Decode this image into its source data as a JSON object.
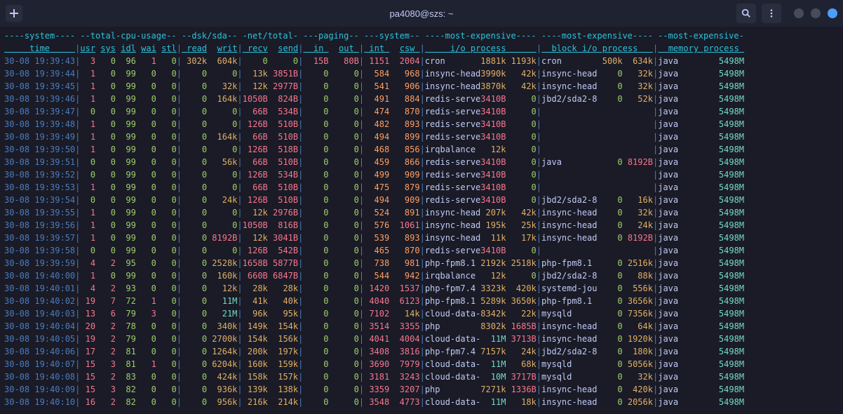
{
  "titlebar": {
    "title": "pa4080@szs: ~"
  },
  "header": {
    "groups": [
      {
        "label": "----system----",
        "cls": "cyan"
      },
      {
        "label": " --total-cpu-usage--",
        "cls": "cyan"
      },
      {
        "label": " --dsk/sda--",
        "cls": "cyan"
      },
      {
        "label": " -net/total-",
        "cls": "cyan"
      },
      {
        "label": " ---paging--",
        "cls": "cyan"
      },
      {
        "label": " ---system--",
        "cls": "cyan"
      },
      {
        "label": " ----most-expensive----",
        "cls": "cyan"
      },
      {
        "label": " ----most-expensive----",
        "cls": "cyan"
      },
      {
        "label": " --most-expensive-",
        "cls": "cyan"
      }
    ],
    "cols": [
      {
        "label": "     time     ",
        "cls": "cyan-u"
      },
      {
        "label": "|",
        "cls": "blue"
      },
      {
        "label": "usr",
        "cls": "cyan-u"
      },
      {
        "label": " ",
        "cls": "cyan"
      },
      {
        "label": "sys",
        "cls": "cyan-u"
      },
      {
        "label": " ",
        "cls": "cyan"
      },
      {
        "label": "idl",
        "cls": "cyan-u"
      },
      {
        "label": " ",
        "cls": "cyan"
      },
      {
        "label": "wai",
        "cls": "cyan-u"
      },
      {
        "label": " ",
        "cls": "cyan"
      },
      {
        "label": "stl",
        "cls": "cyan-u"
      },
      {
        "label": "|",
        "cls": "blue"
      },
      {
        "label": " read",
        "cls": "cyan-u"
      },
      {
        "label": "  ",
        "cls": "cyan"
      },
      {
        "label": "writ",
        "cls": "cyan-u"
      },
      {
        "label": "|",
        "cls": "blue"
      },
      {
        "label": " recv",
        "cls": "cyan-u"
      },
      {
        "label": "  ",
        "cls": "cyan"
      },
      {
        "label": "send",
        "cls": "cyan-u"
      },
      {
        "label": "|",
        "cls": "blue"
      },
      {
        "label": "  in ",
        "cls": "cyan-u"
      },
      {
        "label": "  ",
        "cls": "cyan"
      },
      {
        "label": "out ",
        "cls": "cyan-u"
      },
      {
        "label": "|",
        "cls": "blue"
      },
      {
        "label": " int ",
        "cls": "cyan-u"
      },
      {
        "label": "  ",
        "cls": "cyan"
      },
      {
        "label": "csw ",
        "cls": "cyan-u"
      },
      {
        "label": "|",
        "cls": "blue"
      },
      {
        "label": "     i/o process      ",
        "cls": "cyan-u"
      },
      {
        "label": "|",
        "cls": "blue"
      },
      {
        "label": "  block i/o process   ",
        "cls": "cyan-u"
      },
      {
        "label": "|",
        "cls": "blue"
      },
      {
        "label": "  memory process ",
        "cls": "cyan-u"
      }
    ]
  },
  "rows": [
    {
      "time": "30-08 19:39:43",
      "usr": "3",
      "sys": "0",
      "idl": "96",
      "wai": "1",
      "stl": "0",
      "read": "302k",
      "writ": "604k",
      "recv": "0",
      "send": "0",
      "in": "15B",
      "out": "80B",
      "int": "1151",
      "csw": "2004",
      "io_proc": "cron",
      "io_r": "1881k",
      "io_w": "1193k",
      "blk_proc": "cron",
      "blk_r": "500k",
      "blk_w": "634k",
      "mem_proc": "java",
      "mem_v": "5498M"
    },
    {
      "time": "30-08 19:39:44",
      "usr": "1",
      "sys": "0",
      "idl": "99",
      "wai": "0",
      "stl": "0",
      "read": "0",
      "writ": "0",
      "recv": "13k",
      "send": "3851B",
      "in": "0",
      "out": "0",
      "int": "584",
      "csw": "968",
      "io_proc": "insync-head",
      "io_r": "3990k",
      "io_w": "42k",
      "blk_proc": "insync-head",
      "blk_r": "0",
      "blk_w": "32k",
      "mem_proc": "java",
      "mem_v": "5498M"
    },
    {
      "time": "30-08 19:39:45",
      "usr": "1",
      "sys": "0",
      "idl": "99",
      "wai": "0",
      "stl": "0",
      "read": "0",
      "writ": "32k",
      "recv": "12k",
      "send": "2977B",
      "in": "0",
      "out": "0",
      "int": "541",
      "csw": "906",
      "io_proc": "insync-head",
      "io_r": "3870k",
      "io_w": "42k",
      "blk_proc": "insync-head",
      "blk_r": "0",
      "blk_w": "32k",
      "mem_proc": "java",
      "mem_v": "5498M"
    },
    {
      "time": "30-08 19:39:46",
      "usr": "1",
      "sys": "0",
      "idl": "99",
      "wai": "0",
      "stl": "0",
      "read": "0",
      "writ": "164k",
      "recv": "1050B",
      "send": "824B",
      "in": "0",
      "out": "0",
      "int": "491",
      "csw": "884",
      "io_proc": "redis-serve",
      "io_r": "3410B",
      "io_w": "0",
      "blk_proc": "jbd2/sda2-8",
      "blk_r": "0",
      "blk_w": "52k",
      "mem_proc": "java",
      "mem_v": "5498M"
    },
    {
      "time": "30-08 19:39:47",
      "usr": "0",
      "sys": "0",
      "idl": "99",
      "wai": "0",
      "stl": "0",
      "read": "0",
      "writ": "0",
      "recv": "66B",
      "send": "534B",
      "in": "0",
      "out": "0",
      "int": "474",
      "csw": "870",
      "io_proc": "redis-serve",
      "io_r": "3410B",
      "io_w": "0",
      "blk_proc": "",
      "blk_r": "",
      "blk_w": "",
      "mem_proc": "java",
      "mem_v": "5498M"
    },
    {
      "time": "30-08 19:39:48",
      "usr": "1",
      "sys": "0",
      "idl": "99",
      "wai": "0",
      "stl": "0",
      "read": "0",
      "writ": "0",
      "recv": "126B",
      "send": "510B",
      "in": "0",
      "out": "0",
      "int": "482",
      "csw": "893",
      "io_proc": "redis-serve",
      "io_r": "3410B",
      "io_w": "0",
      "blk_proc": "",
      "blk_r": "",
      "blk_w": "",
      "mem_proc": "java",
      "mem_v": "5498M"
    },
    {
      "time": "30-08 19:39:49",
      "usr": "1",
      "sys": "0",
      "idl": "99",
      "wai": "0",
      "stl": "0",
      "read": "0",
      "writ": "164k",
      "recv": "66B",
      "send": "510B",
      "in": "0",
      "out": "0",
      "int": "494",
      "csw": "899",
      "io_proc": "redis-serve",
      "io_r": "3410B",
      "io_w": "0",
      "blk_proc": "",
      "blk_r": "",
      "blk_w": "",
      "mem_proc": "java",
      "mem_v": "5498M"
    },
    {
      "time": "30-08 19:39:50",
      "usr": "1",
      "sys": "0",
      "idl": "99",
      "wai": "0",
      "stl": "0",
      "read": "0",
      "writ": "0",
      "recv": "126B",
      "send": "518B",
      "in": "0",
      "out": "0",
      "int": "468",
      "csw": "856",
      "io_proc": "irqbalance",
      "io_r": "12k",
      "io_w": "0",
      "blk_proc": "",
      "blk_r": "",
      "blk_w": "",
      "mem_proc": "java",
      "mem_v": "5498M"
    },
    {
      "time": "30-08 19:39:51",
      "usr": "0",
      "sys": "0",
      "idl": "99",
      "wai": "0",
      "stl": "0",
      "read": "0",
      "writ": "56k",
      "recv": "66B",
      "send": "510B",
      "in": "0",
      "out": "0",
      "int": "459",
      "csw": "866",
      "io_proc": "redis-serve",
      "io_r": "3410B",
      "io_w": "0",
      "blk_proc": "java",
      "blk_r": "0",
      "blk_w": "8192B",
      "mem_proc": "java",
      "mem_v": "5498M"
    },
    {
      "time": "30-08 19:39:52",
      "usr": "0",
      "sys": "0",
      "idl": "99",
      "wai": "0",
      "stl": "0",
      "read": "0",
      "writ": "0",
      "recv": "126B",
      "send": "534B",
      "in": "0",
      "out": "0",
      "int": "499",
      "csw": "909",
      "io_proc": "redis-serve",
      "io_r": "3410B",
      "io_w": "0",
      "blk_proc": "",
      "blk_r": "",
      "blk_w": "",
      "mem_proc": "java",
      "mem_v": "5498M"
    },
    {
      "time": "30-08 19:39:53",
      "usr": "1",
      "sys": "0",
      "idl": "99",
      "wai": "0",
      "stl": "0",
      "read": "0",
      "writ": "0",
      "recv": "66B",
      "send": "510B",
      "in": "0",
      "out": "0",
      "int": "475",
      "csw": "879",
      "io_proc": "redis-serve",
      "io_r": "3410B",
      "io_w": "0",
      "blk_proc": "",
      "blk_r": "",
      "blk_w": "",
      "mem_proc": "java",
      "mem_v": "5498M"
    },
    {
      "time": "30-08 19:39:54",
      "usr": "0",
      "sys": "0",
      "idl": "99",
      "wai": "0",
      "stl": "0",
      "read": "0",
      "writ": "24k",
      "recv": "126B",
      "send": "510B",
      "in": "0",
      "out": "0",
      "int": "494",
      "csw": "909",
      "io_proc": "redis-serve",
      "io_r": "3410B",
      "io_w": "0",
      "blk_proc": "jbd2/sda2-8",
      "blk_r": "0",
      "blk_w": "16k",
      "mem_proc": "java",
      "mem_v": "5498M"
    },
    {
      "time": "30-08 19:39:55",
      "usr": "1",
      "sys": "0",
      "idl": "99",
      "wai": "0",
      "stl": "0",
      "read": "0",
      "writ": "0",
      "recv": "12k",
      "send": "2976B",
      "in": "0",
      "out": "0",
      "int": "524",
      "csw": "891",
      "io_proc": "insync-head",
      "io_r": "207k",
      "io_w": "42k",
      "blk_proc": "insync-head",
      "blk_r": "0",
      "blk_w": "32k",
      "mem_proc": "java",
      "mem_v": "5498M"
    },
    {
      "time": "30-08 19:39:56",
      "usr": "1",
      "sys": "0",
      "idl": "99",
      "wai": "0",
      "stl": "0",
      "read": "0",
      "writ": "0",
      "recv": "1050B",
      "send": "816B",
      "in": "0",
      "out": "0",
      "int": "576",
      "csw": "1061",
      "io_proc": "insync-head",
      "io_r": "195k",
      "io_w": "25k",
      "blk_proc": "insync-head",
      "blk_r": "0",
      "blk_w": "24k",
      "mem_proc": "java",
      "mem_v": "5498M"
    },
    {
      "time": "30-08 19:39:57",
      "usr": "1",
      "sys": "0",
      "idl": "99",
      "wai": "0",
      "stl": "0",
      "read": "0",
      "writ": "8192B",
      "recv": "12k",
      "send": "3041B",
      "in": "0",
      "out": "0",
      "int": "539",
      "csw": "893",
      "io_proc": "insync-head",
      "io_r": "11k",
      "io_w": "17k",
      "blk_proc": "insync-head",
      "blk_r": "0",
      "blk_w": "8192B",
      "mem_proc": "java",
      "mem_v": "5498M"
    },
    {
      "time": "30-08 19:39:58",
      "usr": "0",
      "sys": "0",
      "idl": "99",
      "wai": "0",
      "stl": "0",
      "read": "0",
      "writ": "0",
      "recv": "126B",
      "send": "542B",
      "in": "0",
      "out": "0",
      "int": "465",
      "csw": "870",
      "io_proc": "redis-serve",
      "io_r": "3410B",
      "io_w": "0",
      "blk_proc": "",
      "blk_r": "",
      "blk_w": "",
      "mem_proc": "java",
      "mem_v": "5498M"
    },
    {
      "time": "30-08 19:39:59",
      "usr": "4",
      "sys": "2",
      "idl": "95",
      "wai": "0",
      "stl": "0",
      "read": "0",
      "writ": "2528k",
      "recv": "1658B",
      "send": "5877B",
      "in": "0",
      "out": "0",
      "int": "738",
      "csw": "981",
      "io_proc": "php-fpm8.1",
      "io_r": "2192k",
      "io_w": "2518k",
      "blk_proc": "php-fpm8.1",
      "blk_r": "0",
      "blk_w": "2516k",
      "mem_proc": "java",
      "mem_v": "5498M"
    },
    {
      "time": "30-08 19:40:00",
      "usr": "1",
      "sys": "0",
      "idl": "99",
      "wai": "0",
      "stl": "0",
      "read": "0",
      "writ": "160k",
      "recv": "660B",
      "send": "6847B",
      "in": "0",
      "out": "0",
      "int": "544",
      "csw": "942",
      "io_proc": "irqbalance",
      "io_r": "12k",
      "io_w": "0",
      "blk_proc": "jbd2/sda2-8",
      "blk_r": "0",
      "blk_w": "88k",
      "mem_proc": "java",
      "mem_v": "5498M"
    },
    {
      "time": "30-08 19:40:01",
      "usr": "4",
      "sys": "2",
      "idl": "93",
      "wai": "0",
      "stl": "0",
      "read": "0",
      "writ": "12k",
      "recv": "28k",
      "send": "28k",
      "in": "0",
      "out": "0",
      "int": "1420",
      "csw": "1537",
      "io_proc": "php-fpm7.4",
      "io_r": "3323k",
      "io_w": "420k",
      "blk_proc": "systemd-jou",
      "blk_r": "0",
      "blk_w": "556k",
      "mem_proc": "java",
      "mem_v": "5498M"
    },
    {
      "time": "30-08 19:40:02",
      "usr": "19",
      "sys": "7",
      "idl": "72",
      "wai": "1",
      "stl": "0",
      "read": "0",
      "writ": "11M",
      "recv": "41k",
      "send": "40k",
      "in": "0",
      "out": "0",
      "int": "4040",
      "csw": "6123",
      "io_proc": "php-fpm8.1",
      "io_r": "5289k",
      "io_w": "3650k",
      "blk_proc": "php-fpm8.1",
      "blk_r": "0",
      "blk_w": "3656k",
      "mem_proc": "java",
      "mem_v": "5498M"
    },
    {
      "time": "30-08 19:40:03",
      "usr": "13",
      "sys": "6",
      "idl": "79",
      "wai": "3",
      "stl": "0",
      "read": "0",
      "writ": "21M",
      "recv": "96k",
      "send": "95k",
      "in": "0",
      "out": "0",
      "int": "7102",
      "csw": "14k",
      "io_proc": "cloud-data-",
      "io_r": "8342k",
      "io_w": "22k",
      "blk_proc": "mysqld",
      "blk_r": "0",
      "blk_w": "7356k",
      "mem_proc": "java",
      "mem_v": "5498M"
    },
    {
      "time": "30-08 19:40:04",
      "usr": "20",
      "sys": "2",
      "idl": "78",
      "wai": "0",
      "stl": "0",
      "read": "0",
      "writ": "340k",
      "recv": "149k",
      "send": "154k",
      "in": "0",
      "out": "0",
      "int": "3514",
      "csw": "3355",
      "io_proc": "php",
      "io_r": "8302k",
      "io_w": "1685B",
      "blk_proc": "insync-head",
      "blk_r": "0",
      "blk_w": "64k",
      "mem_proc": "java",
      "mem_v": "5498M"
    },
    {
      "time": "30-08 19:40:05",
      "usr": "19",
      "sys": "2",
      "idl": "79",
      "wai": "0",
      "stl": "0",
      "read": "0",
      "writ": "2700k",
      "recv": "154k",
      "send": "156k",
      "in": "0",
      "out": "0",
      "int": "4041",
      "csw": "4004",
      "io_proc": "cloud-data-",
      "io_r": "11M",
      "io_w": "3713B",
      "blk_proc": "insync-head",
      "blk_r": "0",
      "blk_w": "1920k",
      "mem_proc": "java",
      "mem_v": "5498M"
    },
    {
      "time": "30-08 19:40:06",
      "usr": "17",
      "sys": "2",
      "idl": "81",
      "wai": "0",
      "stl": "0",
      "read": "0",
      "writ": "1264k",
      "recv": "200k",
      "send": "197k",
      "in": "0",
      "out": "0",
      "int": "3408",
      "csw": "3816",
      "io_proc": "php-fpm7.4",
      "io_r": "7157k",
      "io_w": "24k",
      "blk_proc": "jbd2/sda2-8",
      "blk_r": "0",
      "blk_w": "180k",
      "mem_proc": "java",
      "mem_v": "5498M"
    },
    {
      "time": "30-08 19:40:07",
      "usr": "15",
      "sys": "3",
      "idl": "81",
      "wai": "1",
      "stl": "0",
      "read": "0",
      "writ": "6204k",
      "recv": "160k",
      "send": "159k",
      "in": "0",
      "out": "0",
      "int": "3690",
      "csw": "7979",
      "io_proc": "cloud-data-",
      "io_r": "11M",
      "io_w": "68k",
      "blk_proc": "mysqld",
      "blk_r": "0",
      "blk_w": "5056k",
      "mem_proc": "java",
      "mem_v": "5498M"
    },
    {
      "time": "30-08 19:40:08",
      "usr": "15",
      "sys": "2",
      "idl": "83",
      "wai": "0",
      "stl": "0",
      "read": "0",
      "writ": "424k",
      "recv": "158k",
      "send": "157k",
      "in": "0",
      "out": "0",
      "int": "3181",
      "csw": "3243",
      "io_proc": "cloud-data-",
      "io_r": "10M",
      "io_w": "3717B",
      "blk_proc": "mysqld",
      "blk_r": "0",
      "blk_w": "32k",
      "mem_proc": "java",
      "mem_v": "5498M"
    },
    {
      "time": "30-08 19:40:09",
      "usr": "15",
      "sys": "3",
      "idl": "82",
      "wai": "0",
      "stl": "0",
      "read": "0",
      "writ": "936k",
      "recv": "139k",
      "send": "138k",
      "in": "0",
      "out": "0",
      "int": "3359",
      "csw": "3207",
      "io_proc": "php",
      "io_r": "7271k",
      "io_w": "1336B",
      "blk_proc": "insync-head",
      "blk_r": "0",
      "blk_w": "420k",
      "mem_proc": "java",
      "mem_v": "5498M"
    },
    {
      "time": "30-08 19:40:10",
      "usr": "16",
      "sys": "2",
      "idl": "82",
      "wai": "0",
      "stl": "0",
      "read": "0",
      "writ": "956k",
      "recv": "216k",
      "send": "214k",
      "in": "0",
      "out": "0",
      "int": "3548",
      "csw": "4773",
      "io_proc": "cloud-data-",
      "io_r": "11M",
      "io_w": "18k",
      "blk_proc": "insync-head",
      "blk_r": "0",
      "blk_w": "2056k",
      "mem_proc": "java",
      "mem_v": "5498M"
    }
  ]
}
